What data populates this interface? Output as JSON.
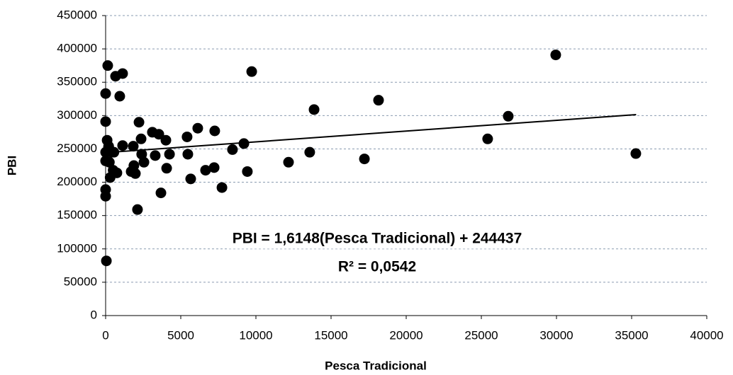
{
  "chart_data": {
    "type": "scatter",
    "x_label": "Pesca Tradicional",
    "y_label": "PBI",
    "color": "#000000",
    "x": [
      50,
      140,
      0,
      0,
      0,
      0,
      0,
      0,
      100,
      200,
      250,
      300,
      200,
      400,
      550,
      500,
      750,
      660,
      940,
      1130,
      1130,
      1840,
      1880,
      1700,
      1980,
      2120,
      2220,
      2360,
      2400,
      2550,
      3110,
      3300,
      3540,
      3680,
      4010,
      4060,
      4250,
      5420,
      5470,
      5660,
      6130,
      6650,
      7260,
      7220,
      7740,
      8440,
      9200,
      9430,
      9720,
      12170,
      13580,
      13870,
      17220,
      18160,
      25420,
      26790,
      29950,
      35280
    ],
    "values": [
      82000,
      375000,
      333000,
      291000,
      245000,
      232000,
      189000,
      179000,
      263000,
      253000,
      230000,
      207000,
      254000,
      245000,
      245000,
      218000,
      214000,
      359000,
      329000,
      363000,
      255000,
      254000,
      225000,
      216000,
      213000,
      159000,
      290000,
      265000,
      242000,
      230000,
      275000,
      240000,
      272000,
      184000,
      263000,
      221000,
      242000,
      268000,
      242000,
      205000,
      281000,
      218000,
      277000,
      222000,
      192000,
      249000,
      258000,
      216000,
      366000,
      230000,
      245000,
      309000,
      235000,
      323000,
      265000,
      299000,
      391000,
      243000
    ],
    "trendline": {
      "x": [
        0,
        35300
      ],
      "values": [
        244437,
        301439
      ],
      "color": "#000000"
    },
    "annotations": [
      "PBI = 1,6148(Pesca Tradicional) + 244437",
      "R² = 0,0542"
    ],
    "xlim": [
      0,
      40000
    ],
    "ylim": [
      0,
      450000
    ],
    "xticks": [
      0,
      5000,
      10000,
      15000,
      20000,
      25000,
      30000,
      35000,
      40000
    ],
    "yticks": [
      0,
      50000,
      100000,
      150000,
      200000,
      250000,
      300000,
      350000,
      400000,
      450000
    ],
    "grid": true
  }
}
